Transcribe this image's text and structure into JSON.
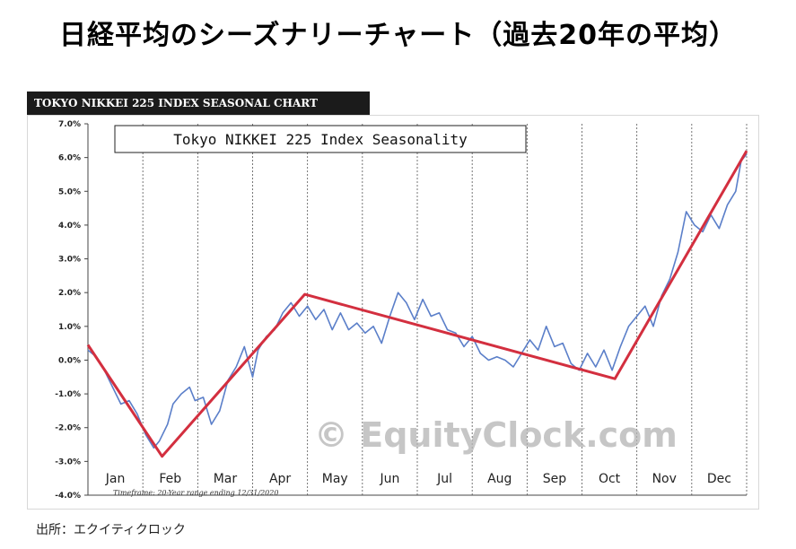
{
  "page_title": "日経平均のシーズナリーチャート（過去20年の平均）",
  "chart_banner": "TOKYO NIKKEI 225 INDEX SEASONAL CHART",
  "source_text": "出所：エクイティクロック",
  "chart_data": {
    "type": "line",
    "title": "Tokyo NIKKEI 225 Index Seasonality",
    "watermark": "© EquityClock.com",
    "timeframe_note": "Timeframe: 20-Year range ending 12/31/2020",
    "x_categories": [
      "Jan",
      "Feb",
      "Mar",
      "Apr",
      "May",
      "Jun",
      "Jul",
      "Aug",
      "Sep",
      "Oct",
      "Nov",
      "Dec"
    ],
    "y_ticks": [
      "7.0%",
      "6.0%",
      "5.0%",
      "4.0%",
      "3.0%",
      "2.0%",
      "1.0%",
      "0.0%",
      "-1.0%",
      "-2.0%",
      "-3.0%",
      "-4.0%"
    ],
    "ylim": [
      -4.0,
      7.0
    ],
    "xlim": [
      0,
      12
    ],
    "grid": "vertical dashed at month boundaries",
    "series": [
      {
        "color": "#5b7fc9",
        "points": [
          [
            0.0,
            0.3
          ],
          [
            0.15,
            0.1
          ],
          [
            0.3,
            -0.3
          ],
          [
            0.45,
            -0.8
          ],
          [
            0.6,
            -1.3
          ],
          [
            0.75,
            -1.2
          ],
          [
            0.9,
            -1.6
          ],
          [
            1.05,
            -2.2
          ],
          [
            1.2,
            -2.6
          ],
          [
            1.3,
            -2.4
          ],
          [
            1.45,
            -1.9
          ],
          [
            1.55,
            -1.3
          ],
          [
            1.7,
            -1.0
          ],
          [
            1.85,
            -0.8
          ],
          [
            1.95,
            -1.2
          ],
          [
            2.1,
            -1.1
          ],
          [
            2.25,
            -1.9
          ],
          [
            2.4,
            -1.5
          ],
          [
            2.55,
            -0.6
          ],
          [
            2.7,
            -0.2
          ],
          [
            2.85,
            0.4
          ],
          [
            3.0,
            -0.5
          ],
          [
            3.1,
            0.3
          ],
          [
            3.25,
            0.7
          ],
          [
            3.4,
            0.9
          ],
          [
            3.55,
            1.4
          ],
          [
            3.7,
            1.7
          ],
          [
            3.85,
            1.3
          ],
          [
            4.0,
            1.6
          ],
          [
            4.15,
            1.2
          ],
          [
            4.3,
            1.5
          ],
          [
            4.45,
            0.9
          ],
          [
            4.6,
            1.4
          ],
          [
            4.75,
            0.9
          ],
          [
            4.9,
            1.1
          ],
          [
            5.05,
            0.8
          ],
          [
            5.2,
            1.0
          ],
          [
            5.35,
            0.5
          ],
          [
            5.5,
            1.3
          ],
          [
            5.65,
            2.0
          ],
          [
            5.8,
            1.7
          ],
          [
            5.95,
            1.2
          ],
          [
            6.1,
            1.8
          ],
          [
            6.25,
            1.3
          ],
          [
            6.4,
            1.4
          ],
          [
            6.55,
            0.9
          ],
          [
            6.7,
            0.8
          ],
          [
            6.85,
            0.4
          ],
          [
            7.0,
            0.7
          ],
          [
            7.15,
            0.2
          ],
          [
            7.3,
            0.0
          ],
          [
            7.45,
            0.1
          ],
          [
            7.6,
            0.0
          ],
          [
            7.75,
            -0.2
          ],
          [
            7.9,
            0.2
          ],
          [
            8.05,
            0.6
          ],
          [
            8.2,
            0.3
          ],
          [
            8.35,
            1.0
          ],
          [
            8.5,
            0.4
          ],
          [
            8.65,
            0.5
          ],
          [
            8.8,
            -0.1
          ],
          [
            8.95,
            -0.3
          ],
          [
            9.1,
            0.2
          ],
          [
            9.25,
            -0.2
          ],
          [
            9.4,
            0.3
          ],
          [
            9.55,
            -0.3
          ],
          [
            9.7,
            0.4
          ],
          [
            9.85,
            1.0
          ],
          [
            10.0,
            1.3
          ],
          [
            10.15,
            1.6
          ],
          [
            10.3,
            1.0
          ],
          [
            10.45,
            1.9
          ],
          [
            10.6,
            2.4
          ],
          [
            10.75,
            3.2
          ],
          [
            10.9,
            4.4
          ],
          [
            11.05,
            4.0
          ],
          [
            11.2,
            3.8
          ],
          [
            11.35,
            4.3
          ],
          [
            11.5,
            3.9
          ],
          [
            11.65,
            4.6
          ],
          [
            11.8,
            5.0
          ],
          [
            11.9,
            5.9
          ],
          [
            12.0,
            6.1
          ]
        ]
      },
      {
        "color": "#d32f3f",
        "points": [
          [
            0.0,
            0.45
          ],
          [
            1.35,
            -2.85
          ],
          [
            3.95,
            1.95
          ],
          [
            9.6,
            -0.55
          ],
          [
            12.0,
            6.2
          ]
        ]
      }
    ]
  }
}
